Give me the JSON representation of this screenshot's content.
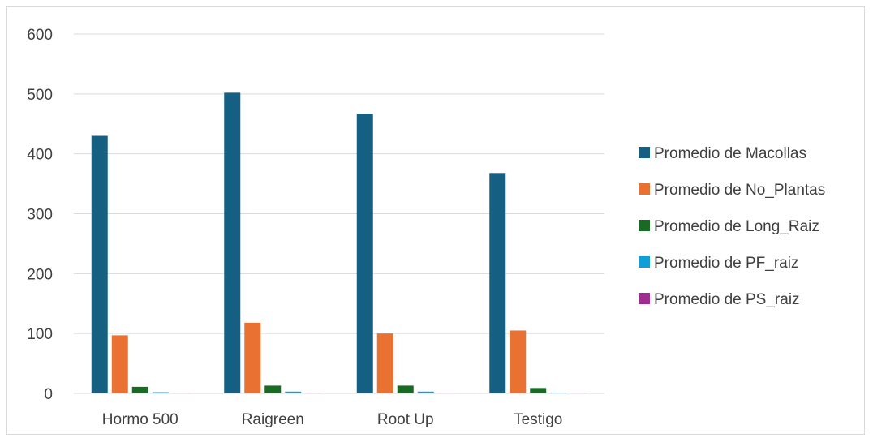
{
  "chart_data": {
    "type": "bar",
    "title": "",
    "xlabel": "",
    "ylabel": "",
    "categories": [
      "Hormo 500",
      "Raigreen",
      "Root Up",
      "Testigo"
    ],
    "ylim": [
      0,
      600
    ],
    "yticks": [
      0,
      100,
      200,
      300,
      400,
      500,
      600
    ],
    "grid": true,
    "legend_position": "right",
    "series": [
      {
        "name": "Promedio de Macollas",
        "color": "#156082",
        "values": [
          430,
          502,
          467,
          368
        ]
      },
      {
        "name": "Promedio de No_Plantas",
        "color": "#E97132",
        "values": [
          97,
          118,
          100,
          105
        ]
      },
      {
        "name": "Promedio de Long_Raiz",
        "color": "#196B24",
        "values": [
          11,
          13,
          13,
          9
        ]
      },
      {
        "name": "Promedio de PF_raiz",
        "color": "#0F9ED5",
        "values": [
          2,
          3,
          3,
          1
        ]
      },
      {
        "name": "Promedio de PS_raiz",
        "color": "#A02B93",
        "values": [
          0.3,
          0.4,
          0.4,
          0.2
        ]
      }
    ]
  }
}
